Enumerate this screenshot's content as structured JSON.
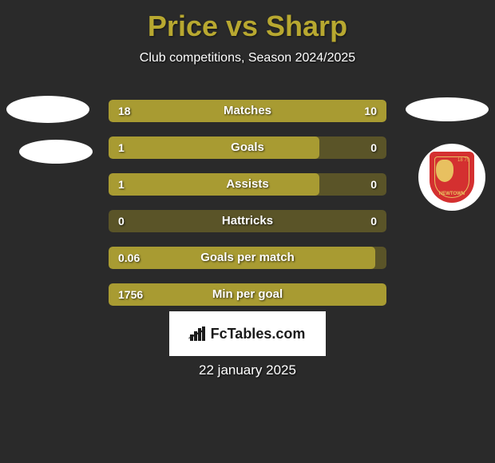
{
  "title": "Price vs Sharp",
  "subtitle": "Club competitions, Season 2024/2025",
  "date": "22 january 2025",
  "logo_text": "FcTables.com",
  "colors": {
    "background": "#2a2a2a",
    "title": "#b8a830",
    "bar_fill": "#a89b32",
    "bar_bg": "#5a5428",
    "text": "#ffffff",
    "shield_bg": "#d43030",
    "shield_accent": "#e8c060"
  },
  "badge": {
    "year": "1875",
    "name_top": "18 75",
    "name_bottom": "NEWTOWN"
  },
  "stats": [
    {
      "label": "Matches",
      "left_value": "18",
      "right_value": "10",
      "left_pct": 64,
      "right_pct": 36,
      "type": "split"
    },
    {
      "label": "Goals",
      "left_value": "1",
      "right_value": "0",
      "left_pct": 76,
      "right_pct": 0,
      "type": "left"
    },
    {
      "label": "Assists",
      "left_value": "1",
      "right_value": "0",
      "left_pct": 76,
      "right_pct": 0,
      "type": "left"
    },
    {
      "label": "Hattricks",
      "left_value": "0",
      "right_value": "0",
      "left_pct": 0,
      "right_pct": 0,
      "type": "none"
    },
    {
      "label": "Goals per match",
      "left_value": "0.06",
      "right_value": "",
      "left_pct": 96,
      "right_pct": 0,
      "type": "left"
    },
    {
      "label": "Min per goal",
      "left_value": "1756",
      "right_value": "",
      "left_pct": 100,
      "right_pct": 0,
      "type": "full"
    }
  ]
}
